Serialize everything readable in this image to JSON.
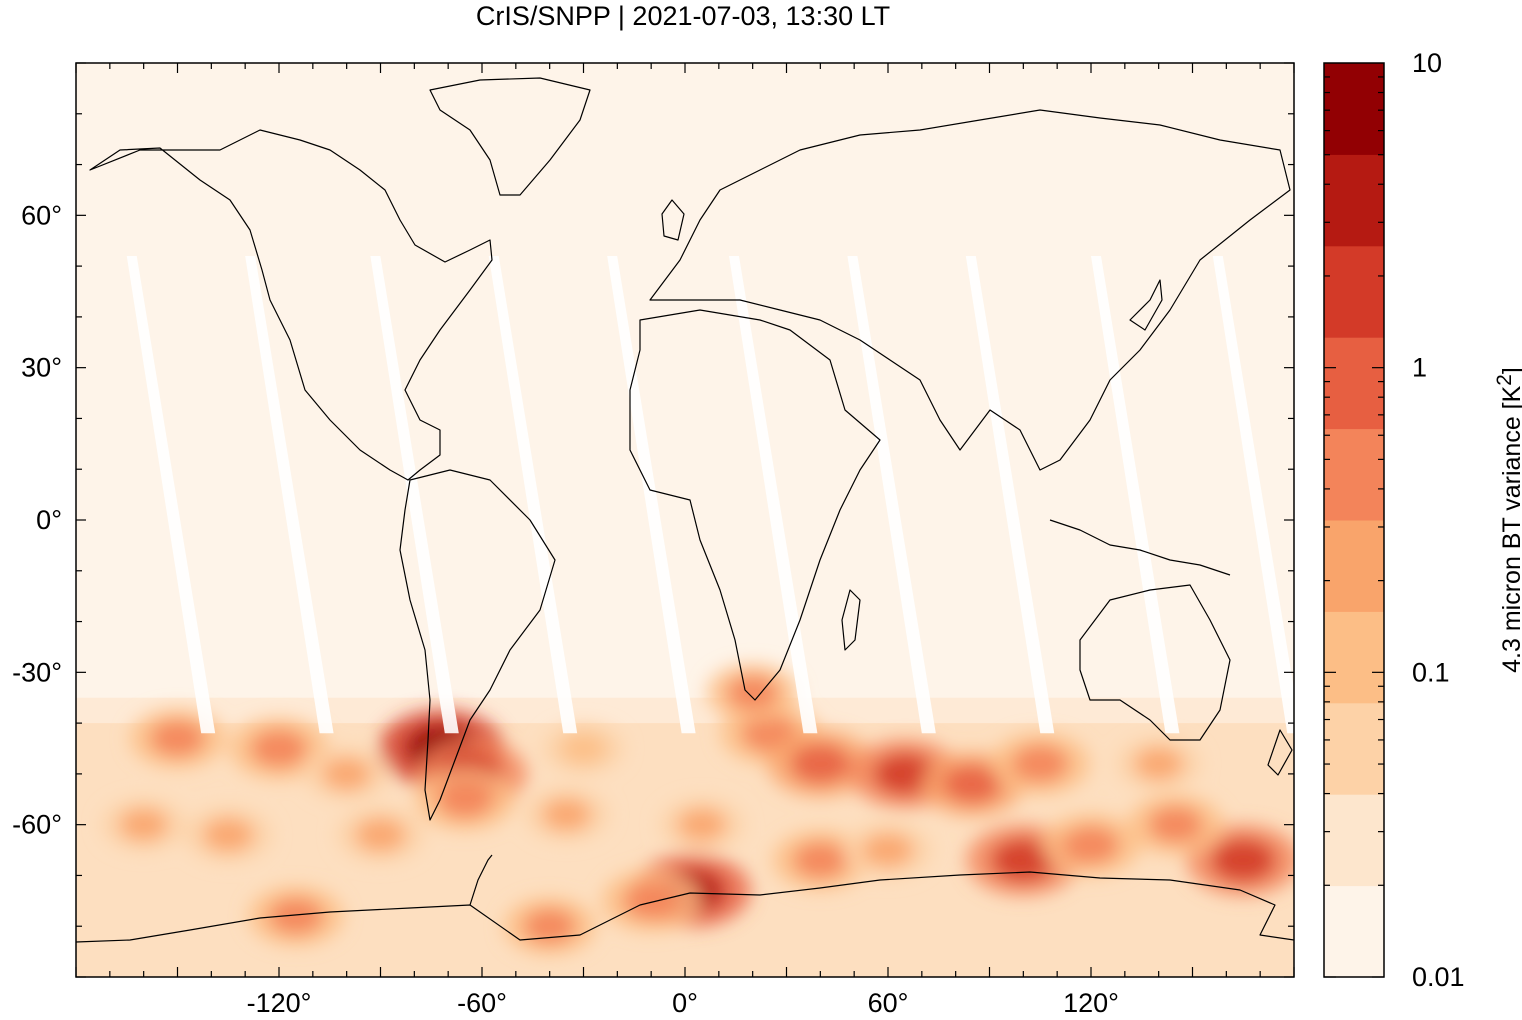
{
  "title": "CrIS/SNPP | 2021-07-03, 13:30 LT",
  "map": {
    "projection": "equirectangular",
    "lon_range": [
      -180,
      180
    ],
    "lat_range": [
      -90,
      90
    ],
    "lon_ticks": [
      {
        "value": -120,
        "label": "-120°"
      },
      {
        "value": -60,
        "label": "-60°"
      },
      {
        "value": 0,
        "label": "0°"
      },
      {
        "value": 60,
        "label": "60°"
      },
      {
        "value": 120,
        "label": "120°"
      }
    ],
    "lat_ticks": [
      {
        "value": 60,
        "label": "60°"
      },
      {
        "value": 30,
        "label": "30°"
      },
      {
        "value": 0,
        "label": "0°"
      },
      {
        "value": -30,
        "label": "-30°"
      },
      {
        "value": -60,
        "label": "-60°"
      }
    ],
    "background_color": "#fef4e9",
    "coastline_color": "#000000"
  },
  "colorbar": {
    "label_main": "4.3 micron BT variance [K",
    "label_sup": "2",
    "label_end": "]",
    "scale": "log",
    "range": [
      0.01,
      10
    ],
    "tick_labels": [
      {
        "value": 10,
        "label": "10"
      },
      {
        "value": 1,
        "label": "1"
      },
      {
        "value": 0.1,
        "label": "0.1"
      },
      {
        "value": 0.01,
        "label": "0.01"
      }
    ],
    "colors": [
      "#fef4e9",
      "#fde6cd",
      "#fdd2a7",
      "#fcbe86",
      "#f9a46b",
      "#f3845a",
      "#e75f41",
      "#d33a28",
      "#b51a12",
      "#920003"
    ]
  },
  "hotspots": [
    {
      "lon": -72,
      "lat": -45,
      "level": 0.95
    },
    {
      "lon": -63,
      "lat": -50,
      "level": 0.75
    },
    {
      "lon": -65,
      "lat": -55,
      "level": 0.6
    },
    {
      "lon": -120,
      "lat": -45,
      "level": 0.6
    },
    {
      "lon": -150,
      "lat": -43,
      "level": 0.55
    },
    {
      "lon": -135,
      "lat": -62,
      "level": 0.45
    },
    {
      "lon": -90,
      "lat": -62,
      "level": 0.45
    },
    {
      "lon": -35,
      "lat": -58,
      "level": 0.4
    },
    {
      "lon": 25,
      "lat": -42,
      "level": 0.6
    },
    {
      "lon": 40,
      "lat": -48,
      "level": 0.7
    },
    {
      "lon": 20,
      "lat": -34,
      "level": 0.5
    },
    {
      "lon": 65,
      "lat": -50,
      "level": 0.75
    },
    {
      "lon": 85,
      "lat": -52,
      "level": 0.65
    },
    {
      "lon": 105,
      "lat": -48,
      "level": 0.6
    },
    {
      "lon": 100,
      "lat": -67,
      "level": 0.8
    },
    {
      "lon": 120,
      "lat": -64,
      "level": 0.6
    },
    {
      "lon": 165,
      "lat": -67,
      "level": 0.8
    },
    {
      "lon": 145,
      "lat": -60,
      "level": 0.55
    },
    {
      "lon": 2,
      "lat": -73,
      "level": 0.85
    },
    {
      "lon": -10,
      "lat": -75,
      "level": 0.6
    },
    {
      "lon": -40,
      "lat": -80,
      "level": 0.5
    },
    {
      "lon": -115,
      "lat": -78,
      "level": 0.55
    },
    {
      "lon": 40,
      "lat": -67,
      "level": 0.55
    },
    {
      "lon": -160,
      "lat": -60,
      "level": 0.4
    },
    {
      "lon": -30,
      "lat": -45,
      "level": 0.35
    },
    {
      "lon": 5,
      "lat": -60,
      "level": 0.4
    },
    {
      "lon": 60,
      "lat": -65,
      "level": 0.45
    },
    {
      "lon": 140,
      "lat": -48,
      "level": 0.4
    },
    {
      "lon": -100,
      "lat": -50,
      "level": 0.4
    }
  ]
}
